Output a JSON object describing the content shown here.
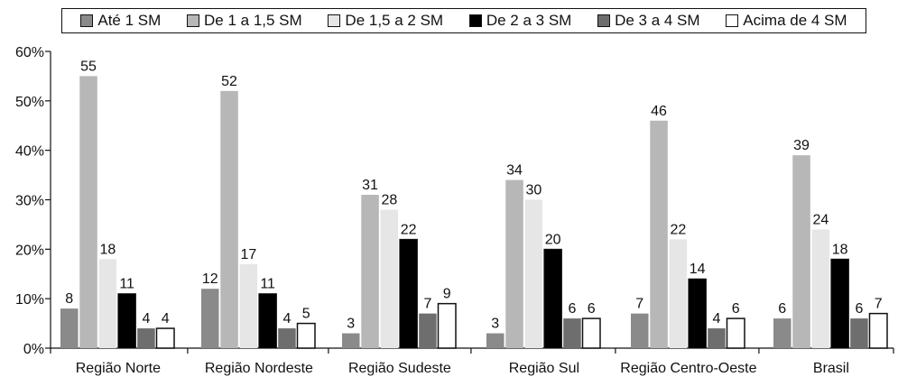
{
  "legend": {
    "items": [
      {
        "label": "Até 1 SM",
        "color": "#8a8a8a"
      },
      {
        "label": "De 1 a 1,5 SM",
        "color": "#b7b7b7"
      },
      {
        "label": "De 1,5 a 2 SM",
        "color": "#e6e6e6"
      },
      {
        "label": "De 2 a 3 SM",
        "color": "#000000"
      },
      {
        "label": "De 3 a 4 SM",
        "color": "#6e6e6e"
      },
      {
        "label": "Acima de 4 SM",
        "color": "#ffffff"
      }
    ]
  },
  "chart_data": {
    "type": "bar",
    "categories": [
      "Região Norte",
      "Região Nordeste",
      "Região Sudeste",
      "Região Sul",
      "Região Centro-Oeste",
      "Brasil"
    ],
    "series": [
      {
        "name": "Até 1 SM",
        "color": "#8a8a8a",
        "values": [
          8,
          12,
          3,
          3,
          7,
          6
        ]
      },
      {
        "name": "De 1 a 1,5 SM",
        "color": "#b7b7b7",
        "values": [
          55,
          52,
          31,
          34,
          46,
          39
        ]
      },
      {
        "name": "De 1,5 a 2 SM",
        "color": "#e6e6e6",
        "values": [
          18,
          17,
          28,
          30,
          22,
          24
        ]
      },
      {
        "name": "De 2 a 3 SM",
        "color": "#000000",
        "values": [
          11,
          11,
          22,
          20,
          14,
          18
        ]
      },
      {
        "name": "De 3 a 4 SM",
        "color": "#6e6e6e",
        "values": [
          4,
          4,
          7,
          6,
          4,
          6
        ]
      },
      {
        "name": "Acima de 4 SM",
        "color": "#ffffff",
        "values": [
          4,
          5,
          9,
          6,
          6,
          7
        ]
      }
    ],
    "yticks": [
      "0%",
      "10%",
      "20%",
      "30%",
      "40%",
      "50%",
      "60%"
    ],
    "ylim": [
      0,
      60
    ],
    "grid": false,
    "legend_position": "top"
  }
}
